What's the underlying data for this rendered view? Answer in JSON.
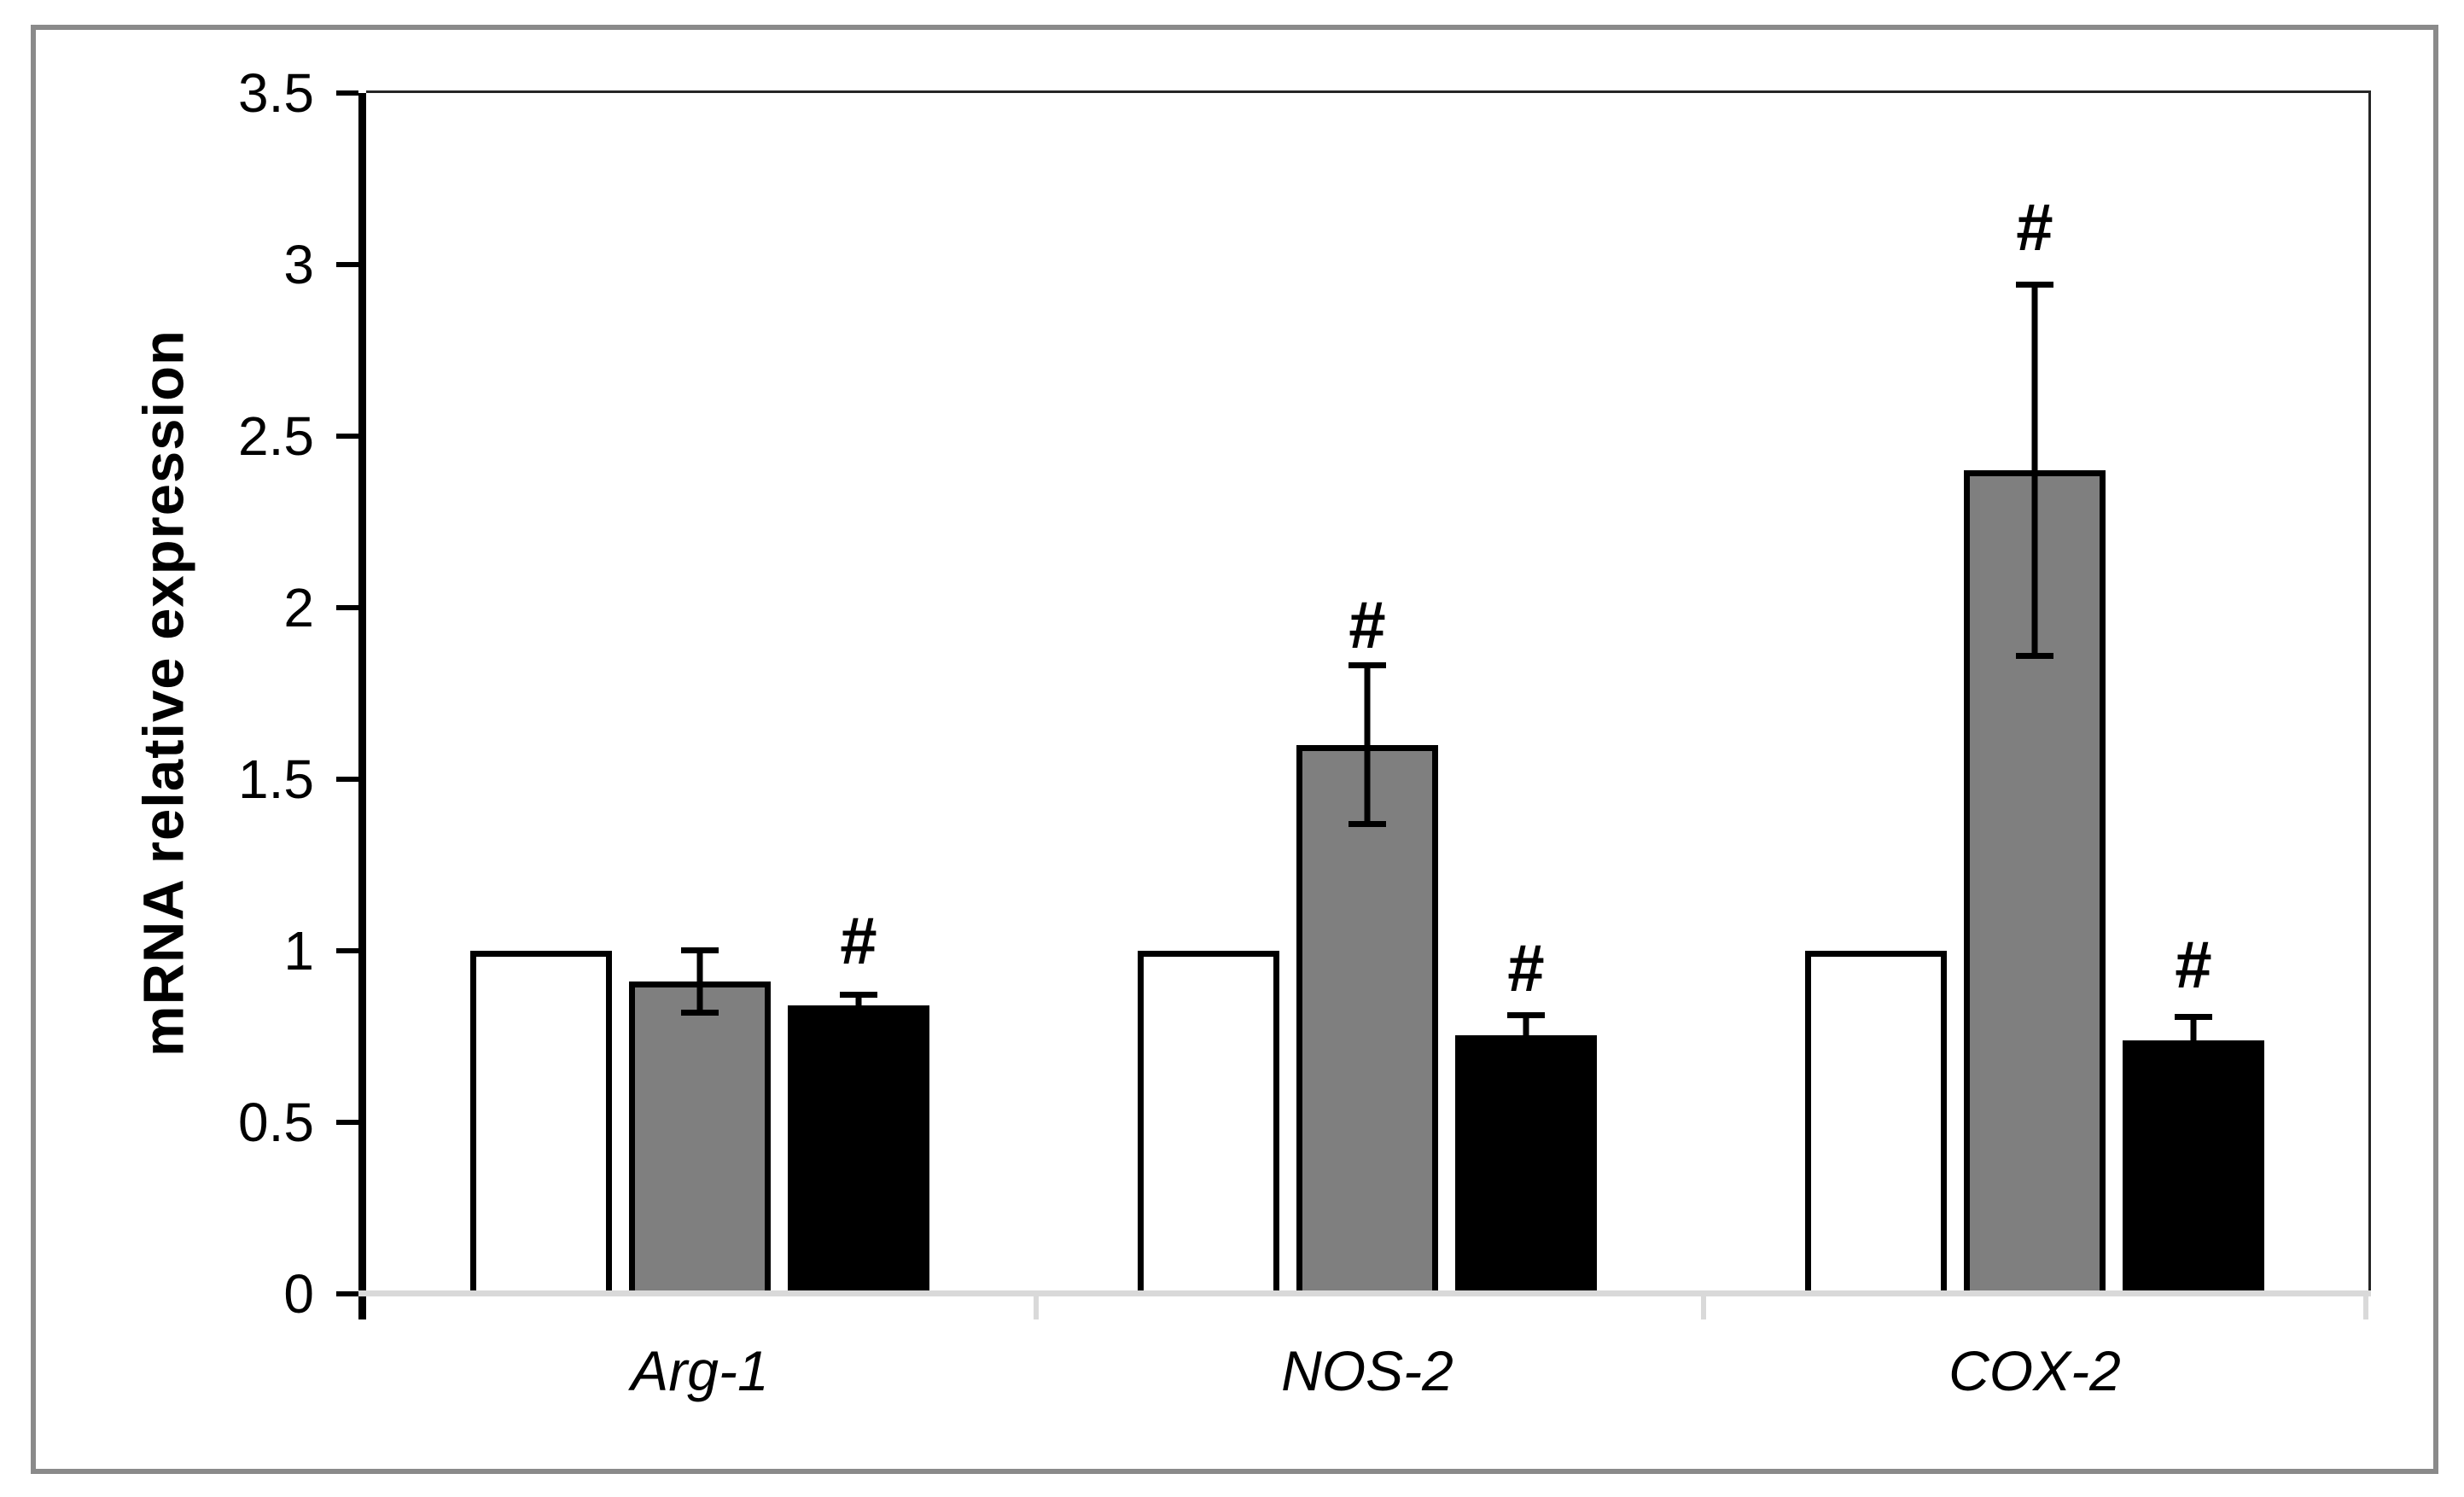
{
  "chart_data": {
    "type": "bar",
    "title": "",
    "ylabel": "mRNA relative expression",
    "xlabel": "",
    "ylim": [
      0,
      3.5
    ],
    "ytick_step": 0.5,
    "yticks": [
      "0",
      "0.5",
      "1",
      "1.5",
      "2",
      "2.5",
      "3",
      "3.5"
    ],
    "categories": [
      "Arg-1",
      "NOS-2",
      "COX-2"
    ],
    "series": [
      {
        "name": "white",
        "fill": "#ffffff",
        "border": "#000000",
        "values": [
          1.0,
          1.0,
          1.0
        ],
        "errors": [
          null,
          null,
          null
        ],
        "hash": [
          null,
          null,
          null
        ]
      },
      {
        "name": "gray",
        "fill": "#7f7f7f",
        "border": "#000000",
        "values": [
          0.91,
          1.6,
          2.4
        ],
        "errors": [
          0.1,
          0.24,
          0.55
        ],
        "hash": [
          null,
          1.95,
          3.11
        ]
      },
      {
        "name": "black",
        "fill": "#000000",
        "border": "#000000",
        "values": [
          0.84,
          0.755,
          0.74
        ],
        "errors": [
          0.04,
          0.065,
          0.075
        ],
        "hash": [
          1.03,
          0.95,
          0.96
        ]
      }
    ],
    "significance_symbol": "#",
    "legend_position": "none",
    "grid": false
  },
  "colors": {
    "bar_white": "#ffffff",
    "bar_gray": "#7f7f7f",
    "bar_black": "#000000",
    "axis_black": "#000000",
    "x_axis_gray": "#d9d9d9",
    "plot_border": "#262626",
    "figure_border_gray": "#8a8a8a"
  }
}
